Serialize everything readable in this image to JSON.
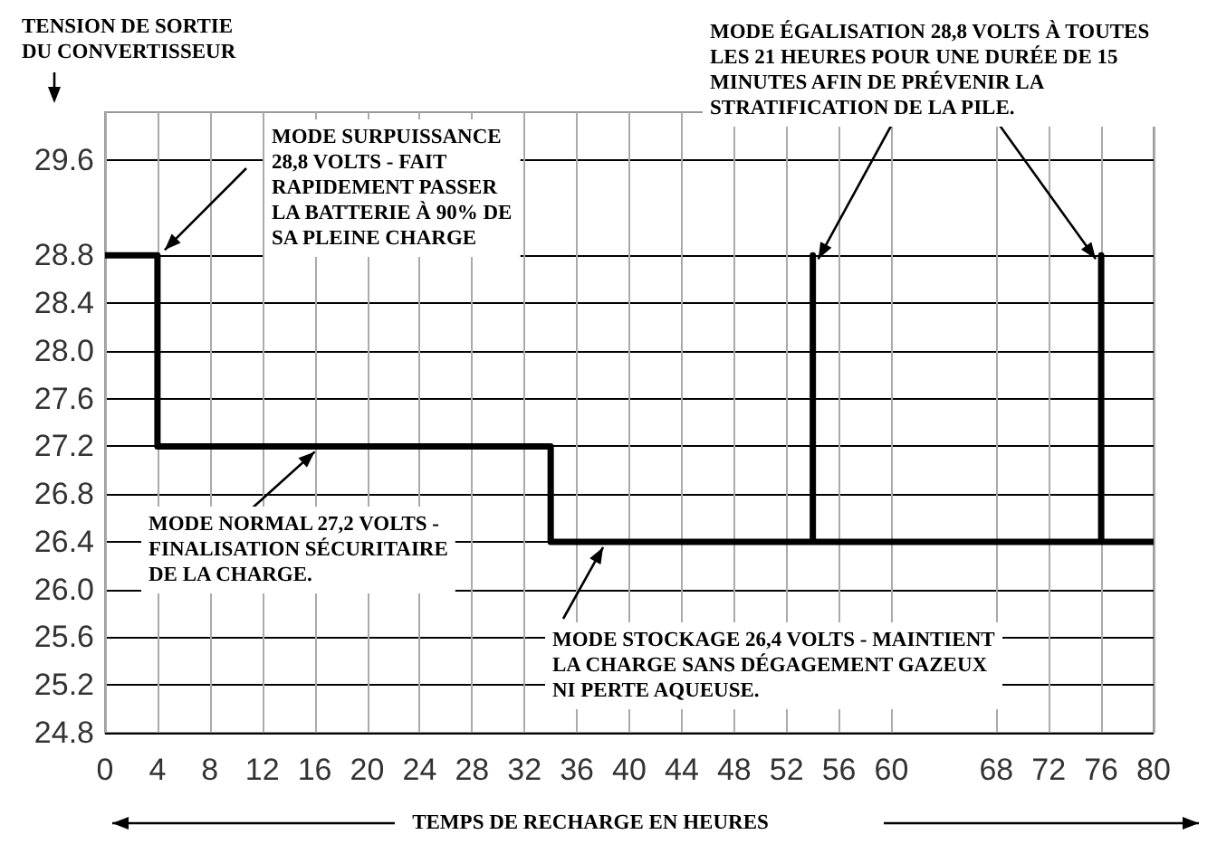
{
  "chart_data": {
    "type": "line",
    "ylabel": "TENSION DE SORTIE\nDU CONVERTISSEUR",
    "xlabel": "TEMPS DE RECHARGE EN HEURES",
    "x": [
      0,
      4,
      4,
      34,
      34,
      54,
      54,
      54,
      76,
      76,
      76,
      80
    ],
    "series": [
      {
        "color": "#000000",
        "values": [
          28.8,
          28.8,
          27.2,
          27.2,
          26.4,
          26.4,
          28.8,
          26.4,
          26.4,
          28.8,
          26.4,
          26.4
        ]
      }
    ],
    "xlim": [
      0,
      80
    ],
    "xticks": [
      0,
      4,
      8,
      12,
      16,
      20,
      24,
      28,
      32,
      36,
      40,
      44,
      48,
      52,
      56,
      60,
      68,
      72,
      76,
      80
    ],
    "ylim": [
      24.8,
      30.0
    ],
    "yticks": [
      24.8,
      25.2,
      25.6,
      {
        "value": 26,
        "label": "26.0"
      },
      26.4,
      26.8,
      27.2,
      27.6,
      {
        "value": 28,
        "label": "28.0"
      },
      28.4,
      28.8,
      29.6
    ],
    "grid": true,
    "marker": "none",
    "line_style": "solid",
    "annotations": [
      {
        "text": "MODE SURPUISSANCE\n28,8 VOLTS - FAIT\nRAPIDEMENT PASSER\nLA BATTERIE À 90% DE\nSA PLEINE CHARGE",
        "x": 4,
        "y": 28.8
      },
      {
        "text": "MODE NORMAL 27,2 VOLTS -\nFINALISATION SÉCURITAIRE\nDE LA CHARGE.",
        "x": 16,
        "y": 27.2
      },
      {
        "text": "MODE STOCKAGE 26,4 VOLTS - MAINTIENT\nLA CHARGE SANS DÉGAGEMENT GAZEUX\nNI PERTE AQUEUSE.",
        "x": 38,
        "y": 26.4
      },
      {
        "text": "MODE ÉGALISATION 28,8 VOLTS À TOUTES\nLES 21 HEURES POUR UNE DURÉE DE 15\nMINUTES AFIN DE PRÉVENIR LA\nSTRATIFICATION DE LA PILE."
      }
    ]
  }
}
